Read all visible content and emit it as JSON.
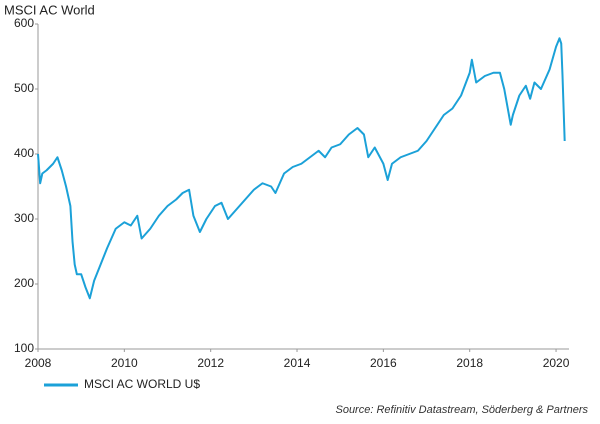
{
  "chart_data": {
    "type": "line",
    "title": "MSCI AC World",
    "source": "Source: Refinitiv Datastream, Söderberg & Partners",
    "x": [
      2008.0,
      2008.05,
      2008.1,
      2008.2,
      2008.35,
      2008.45,
      2008.55,
      2008.65,
      2008.75,
      2008.8,
      2008.85,
      2008.9,
      2009.0,
      2009.1,
      2009.2,
      2009.3,
      2009.45,
      2009.6,
      2009.8,
      2010.0,
      2010.15,
      2010.3,
      2010.4,
      2010.6,
      2010.8,
      2011.0,
      2011.2,
      2011.35,
      2011.5,
      2011.6,
      2011.75,
      2011.9,
      2012.1,
      2012.25,
      2012.4,
      2012.6,
      2012.8,
      2013.0,
      2013.2,
      2013.4,
      2013.5,
      2013.7,
      2013.9,
      2014.1,
      2014.3,
      2014.5,
      2014.65,
      2014.8,
      2015.0,
      2015.2,
      2015.4,
      2015.55,
      2015.65,
      2015.8,
      2016.0,
      2016.1,
      2016.2,
      2016.4,
      2016.6,
      2016.8,
      2017.0,
      2017.2,
      2017.4,
      2017.6,
      2017.8,
      2018.0,
      2018.05,
      2018.15,
      2018.35,
      2018.55,
      2018.7,
      2018.8,
      2018.95,
      2019.0,
      2019.15,
      2019.3,
      2019.4,
      2019.5,
      2019.65,
      2019.85,
      2020.0,
      2020.08,
      2020.12,
      2020.15,
      2020.2
    ],
    "series": [
      {
        "name": "MSCI AC WORLD U$",
        "color": "#1ba1d8",
        "values": [
          400,
          355,
          370,
          375,
          385,
          395,
          375,
          350,
          320,
          265,
          230,
          215,
          215,
          195,
          178,
          205,
          230,
          255,
          285,
          295,
          290,
          305,
          270,
          285,
          305,
          320,
          330,
          340,
          345,
          305,
          280,
          300,
          320,
          325,
          300,
          315,
          330,
          345,
          355,
          350,
          340,
          370,
          380,
          385,
          395,
          405,
          395,
          410,
          415,
          430,
          440,
          430,
          395,
          410,
          385,
          360,
          385,
          395,
          400,
          405,
          420,
          440,
          460,
          470,
          490,
          525,
          545,
          510,
          520,
          525,
          525,
          500,
          445,
          460,
          490,
          505,
          485,
          510,
          500,
          530,
          565,
          578,
          570,
          520,
          420
        ]
      }
    ],
    "xlim": [
      2008,
      2020.3
    ],
    "xticks": [
      2008,
      2010,
      2012,
      2014,
      2016,
      2018,
      2020
    ],
    "ylim": [
      100,
      600
    ],
    "yticks": [
      100,
      200,
      300,
      400,
      500,
      600
    ],
    "grid": false
  }
}
